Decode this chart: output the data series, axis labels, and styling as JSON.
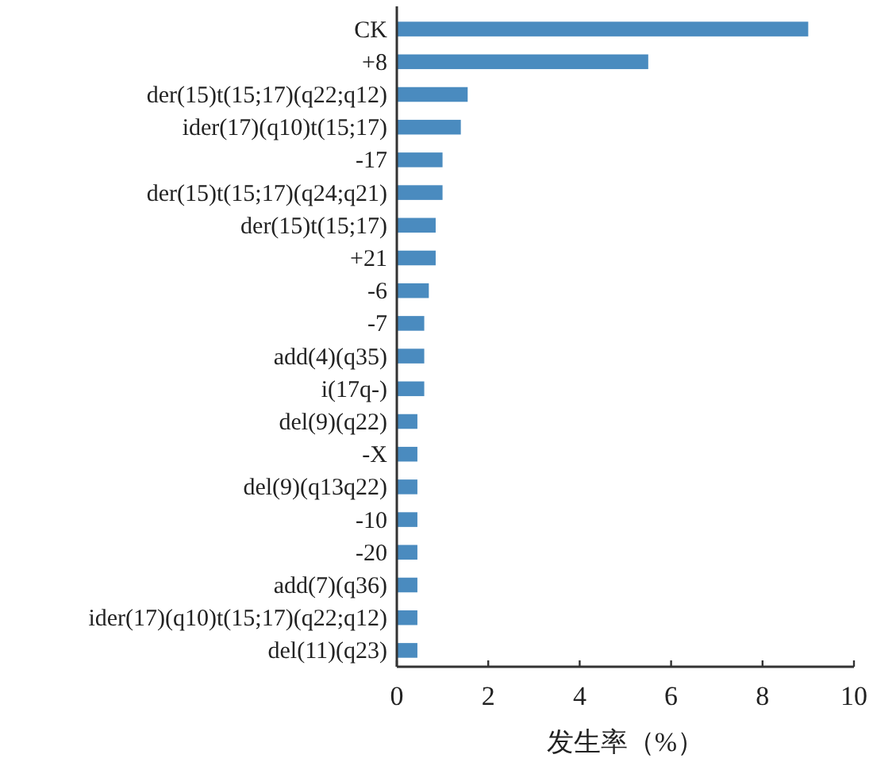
{
  "chart_data": {
    "type": "bar",
    "orientation": "horizontal",
    "xlabel": "发生率（%）",
    "categories": [
      "CK",
      "+8",
      "der(15)t(15;17)(q22;q12)",
      "ider(17)(q10)t(15;17)",
      "-17",
      "der(15)t(15;17)(q24;q21)",
      "der(15)t(15;17)",
      "+21",
      "-6",
      "-7",
      "add(4)(q35)",
      "i(17q-)",
      "del(9)(q22)",
      "-X",
      "del(9)(q13q22)",
      "-10",
      "-20",
      "add(7)(q36)",
      "ider(17)(q10)t(15;17)(q22;q12)",
      "del(11)(q23)"
    ],
    "values": [
      9.0,
      5.5,
      1.55,
      1.4,
      1.0,
      1.0,
      0.85,
      0.85,
      0.7,
      0.6,
      0.6,
      0.6,
      0.45,
      0.45,
      0.45,
      0.45,
      0.45,
      0.45,
      0.45,
      0.45
    ],
    "color": "#4a8bbf",
    "xlim": [
      0,
      10
    ],
    "xticks": [
      0,
      2,
      4,
      6,
      8,
      10
    ],
    "grid": false
  }
}
